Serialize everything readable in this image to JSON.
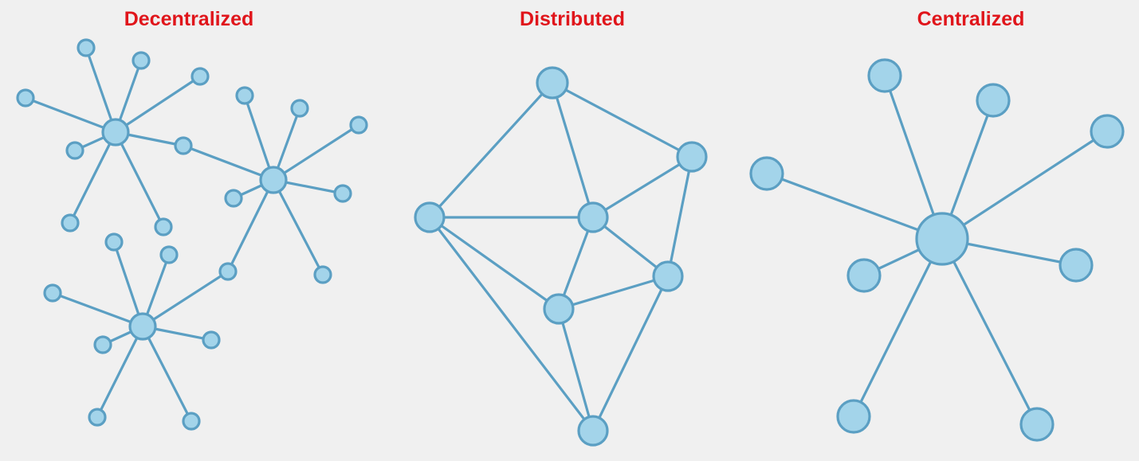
{
  "diagrams": [
    {
      "id": "decentralized",
      "title": "Decentralized"
    },
    {
      "id": "distributed",
      "title": "Distributed"
    },
    {
      "id": "centralized",
      "title": "Centralized"
    }
  ],
  "colors": {
    "title": "#e0151b",
    "node_fill": "#a3d4ea",
    "node_stroke": "#5b9fc3",
    "edge": "#5b9fc3",
    "background": "#f0f0f0"
  }
}
